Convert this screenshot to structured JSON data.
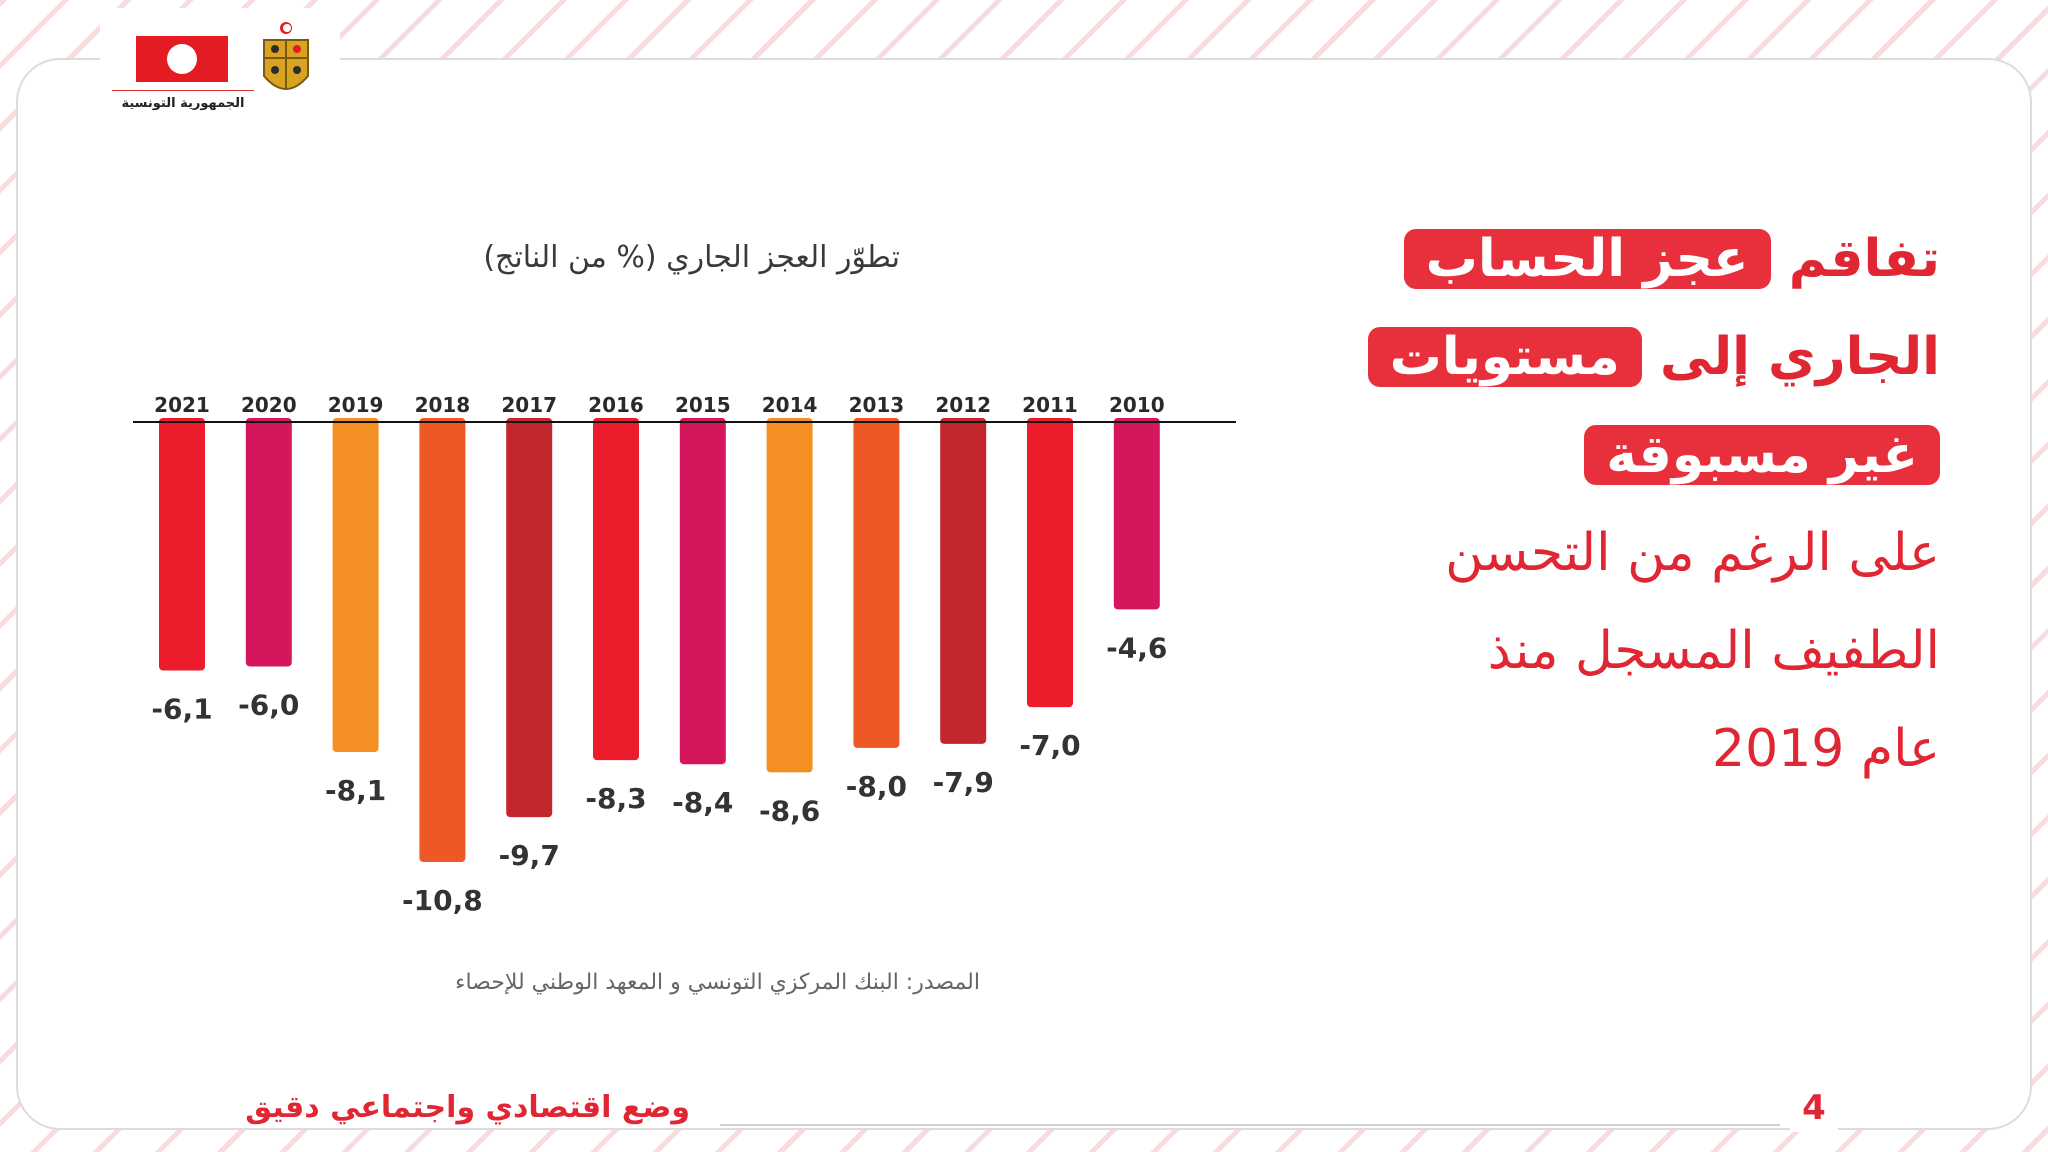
{
  "header": {
    "republic_label": "الجمهورية التونسية"
  },
  "headline": {
    "line1": {
      "plain": "تفاقم",
      "highlight": "عجز الحساب"
    },
    "line2": {
      "plain": "الجاري إلى",
      "highlight": "مستويات"
    },
    "line3": {
      "highlight": "غير مسبوقة"
    },
    "line4": "على الرغم من التحسن",
    "line5": "الطفيف المسجل منذ",
    "line6": "عام 2019"
  },
  "chart_title": "تطوّر العجز الجاري  (% من الناتج)",
  "chart_data": {
    "type": "bar",
    "categories": [
      "2021",
      "2020",
      "2019",
      "2018",
      "2017",
      "2016",
      "2015",
      "2014",
      "2013",
      "2012",
      "2011",
      "2010"
    ],
    "values": [
      -6.1,
      -6.0,
      -8.1,
      -10.8,
      -9.7,
      -8.3,
      -8.4,
      -8.6,
      -8.0,
      -7.9,
      -7.0,
      -4.6
    ],
    "value_labels": [
      "-6,1",
      "-6,0",
      "-8,1",
      "-10,8",
      "-9,7",
      "-8,3",
      "-8,4",
      "-8,6",
      "-8,0",
      "-7,9",
      "-7,0",
      "-4,6"
    ],
    "colors": [
      "#ec1c2c",
      "#d4175c",
      "#f38f23",
      "#ee5726",
      "#c1272d",
      "#ec1c2c",
      "#d4175c",
      "#f38f23",
      "#ee5726",
      "#c1272d",
      "#ec1c2c",
      "#d4175c"
    ],
    "ylim": [
      -10.8,
      0
    ],
    "axis_position": "top",
    "grid": false
  },
  "source": "المصدر: البنك المركزي التونسي  و المعهد الوطني للإحصاء",
  "footer": {
    "subtitle": "وضع اقتصادي واجتماعي دقيق",
    "page_number": "4"
  },
  "colors": {
    "accent": "#e02633",
    "highlight_bg": "#e8303c"
  }
}
